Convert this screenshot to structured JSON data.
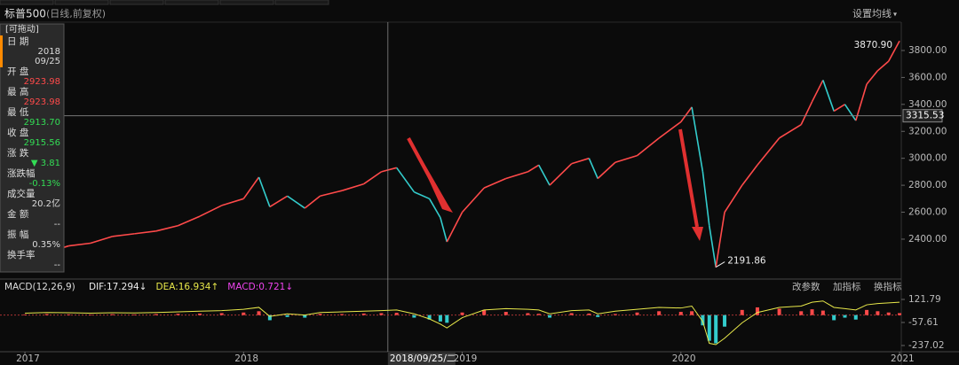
{
  "header": {
    "title": "标普500",
    "subtitle": "(日线,前复权)",
    "ma_button": "设置均线"
  },
  "info_panel": {
    "drag": "[可拖动]",
    "fields": [
      {
        "label": "日 期",
        "value": "2018",
        "value2": "09/25",
        "color": "#dddddd"
      },
      {
        "label": "开 盘",
        "value": "2923.98",
        "color": "#ff4a4a"
      },
      {
        "label": "最 高",
        "value": "2923.98",
        "color": "#ff4a4a"
      },
      {
        "label": "最 低",
        "value": "2913.70",
        "color": "#33dd55"
      },
      {
        "label": "收 盘",
        "value": "2915.56",
        "color": "#33dd55"
      },
      {
        "label": "涨 跌",
        "value": "▼ 3.81",
        "color": "#33dd55"
      },
      {
        "label": "涨跌幅",
        "value": "-0.13%",
        "color": "#33dd55"
      },
      {
        "label": "成交量",
        "value": "20.2亿",
        "color": "#dddddd"
      },
      {
        "label": "金 额",
        "value": "--",
        "color": "#dddddd"
      },
      {
        "label": "振 幅",
        "value": "0.35%",
        "color": "#dddddd"
      },
      {
        "label": "换手率",
        "value": "--",
        "color": "#dddddd"
      }
    ]
  },
  "chart_data": [
    {
      "type": "line",
      "x": [
        2017.0,
        2017.1,
        2017.2,
        2017.3,
        2017.4,
        2017.5,
        2017.6,
        2017.7,
        2017.8,
        2017.9,
        2018.0,
        2018.07,
        2018.12,
        2018.2,
        2018.28,
        2018.35,
        2018.45,
        2018.55,
        2018.63,
        2018.7,
        2018.78,
        2018.85,
        2018.9,
        2018.93,
        2019.0,
        2019.1,
        2019.2,
        2019.3,
        2019.35,
        2019.4,
        2019.5,
        2019.58,
        2019.62,
        2019.7,
        2019.8,
        2019.9,
        2020.0,
        2020.05,
        2020.1,
        2020.13,
        2020.16,
        2020.2,
        2020.28,
        2020.35,
        2020.45,
        2020.55,
        2020.6,
        2020.65,
        2020.7,
        2020.75,
        2020.8,
        2020.85,
        2020.9,
        2020.95,
        2021.0
      ],
      "series": [
        {
          "name": "标普500",
          "up_color": "#ff4a4a",
          "down_color": "#33cccc",
          "values": [
            2260,
            2300,
            2350,
            2370,
            2420,
            2440,
            2460,
            2500,
            2570,
            2650,
            2700,
            2860,
            2640,
            2720,
            2630,
            2720,
            2760,
            2810,
            2900,
            2930,
            2750,
            2700,
            2560,
            2380,
            2600,
            2780,
            2850,
            2900,
            2950,
            2800,
            2960,
            3000,
            2850,
            2970,
            3020,
            3150,
            3270,
            3380,
            2900,
            2500,
            2191.86,
            2600,
            2800,
            2950,
            3150,
            3250,
            3420,
            3580,
            3350,
            3400,
            3280,
            3550,
            3650,
            3720,
            3870.9
          ]
        }
      ],
      "xlim": [
        2016.886,
        2021.008
      ],
      "xticks": [
        2017,
        2018,
        2019,
        2020,
        2021
      ],
      "ylim": [
        2117,
        4076
      ],
      "yticks": [
        {
          "value": 2400,
          "label": "2400.00"
        },
        {
          "value": 2600,
          "label": "2600.00"
        },
        {
          "value": 2800,
          "label": "2800.00"
        },
        {
          "value": 3000,
          "label": "3000.00"
        },
        {
          "value": 3200,
          "label": "3200.00"
        },
        {
          "value": 3400,
          "label": "3400.00"
        },
        {
          "value": 3600,
          "label": "3600.00"
        },
        {
          "value": 3800,
          "label": "3800.00"
        }
      ],
      "high_label": {
        "x": 2021.0,
        "value": 3870.9,
        "label": "3870.90"
      },
      "low_label": {
        "x": 2020.16,
        "value": 2191.86,
        "label": "2191.86"
      },
      "crosshair": {
        "x": 2018.66,
        "value": 3315.53,
        "date_label": "2018/09/25/二"
      }
    },
    {
      "type": "bar",
      "title": "MACD(12,26,9)",
      "readouts": [
        {
          "text": "DIF:17.294↓",
          "color": "#eeeeee"
        },
        {
          "text": "DEA:16.934↑",
          "color": "#e8e84a"
        },
        {
          "text": "MACD:0.721↓",
          "color": "#ee44ee"
        }
      ],
      "buttons": [
        "改参数",
        "加指标",
        "换指标"
      ],
      "series": [
        {
          "name": "MACD",
          "up_color": "#ff4a4a",
          "down_color": "#33cccc",
          "values": [
            5,
            8,
            6,
            4,
            7,
            5,
            8,
            10,
            12,
            15,
            20,
            30,
            -40,
            -15,
            -20,
            10,
            8,
            12,
            15,
            18,
            -20,
            -35,
            -50,
            -60,
            20,
            40,
            25,
            15,
            10,
            -20,
            15,
            12,
            -15,
            8,
            20,
            30,
            25,
            30,
            -80,
            -200,
            -220,
            -90,
            40,
            60,
            50,
            30,
            45,
            35,
            -40,
            -20,
            -35,
            40,
            30,
            20,
            15
          ]
        },
        {
          "name": "DIF",
          "color": "#e8e84a",
          "values": [
            15,
            20,
            18,
            15,
            18,
            17,
            20,
            25,
            30,
            35,
            45,
            60,
            -10,
            10,
            0,
            20,
            25,
            30,
            35,
            40,
            10,
            -30,
            -70,
            -100,
            -20,
            40,
            50,
            45,
            40,
            10,
            35,
            40,
            10,
            30,
            45,
            60,
            55,
            70,
            -50,
            -220,
            -230,
            -180,
            -60,
            20,
            60,
            70,
            100,
            110,
            60,
            50,
            40,
            80,
            90,
            95,
            100
          ]
        }
      ],
      "ylim": [
        -278.4,
        232.2
      ],
      "yticks": [
        121.79,
        -57.61,
        -237.02
      ]
    }
  ]
}
